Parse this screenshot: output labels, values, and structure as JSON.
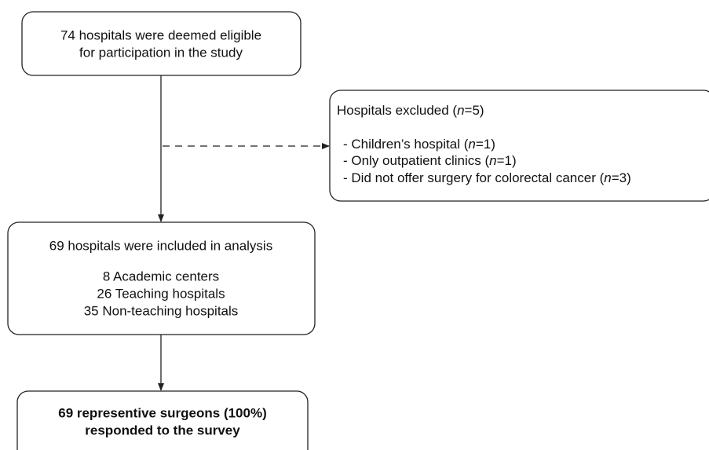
{
  "nodes": [
    {
      "lines": [
        "74 hospitals were deemed eligible",
        "for participation in the study"
      ]
    },
    {
      "title": [
        "Hospitals excluded (",
        "n",
        "=5)"
      ],
      "items": [
        [
          "- Children’s hospital (",
          "n",
          "=1)"
        ],
        [
          "- Only outpatient clinics (",
          "n",
          "=1)"
        ],
        [
          "- Did not offer surgery for colorectal cancer (",
          "n",
          "=3)"
        ]
      ]
    },
    {
      "heading": "69 hospitals were included in analysis",
      "lines": [
        "8 Academic centers",
        "26 Teaching hospitals",
        "35 Non-teaching hospitals"
      ]
    },
    {
      "lines": [
        "69 representive surgeons (100%)",
        "responded to the survey"
      ]
    }
  ]
}
